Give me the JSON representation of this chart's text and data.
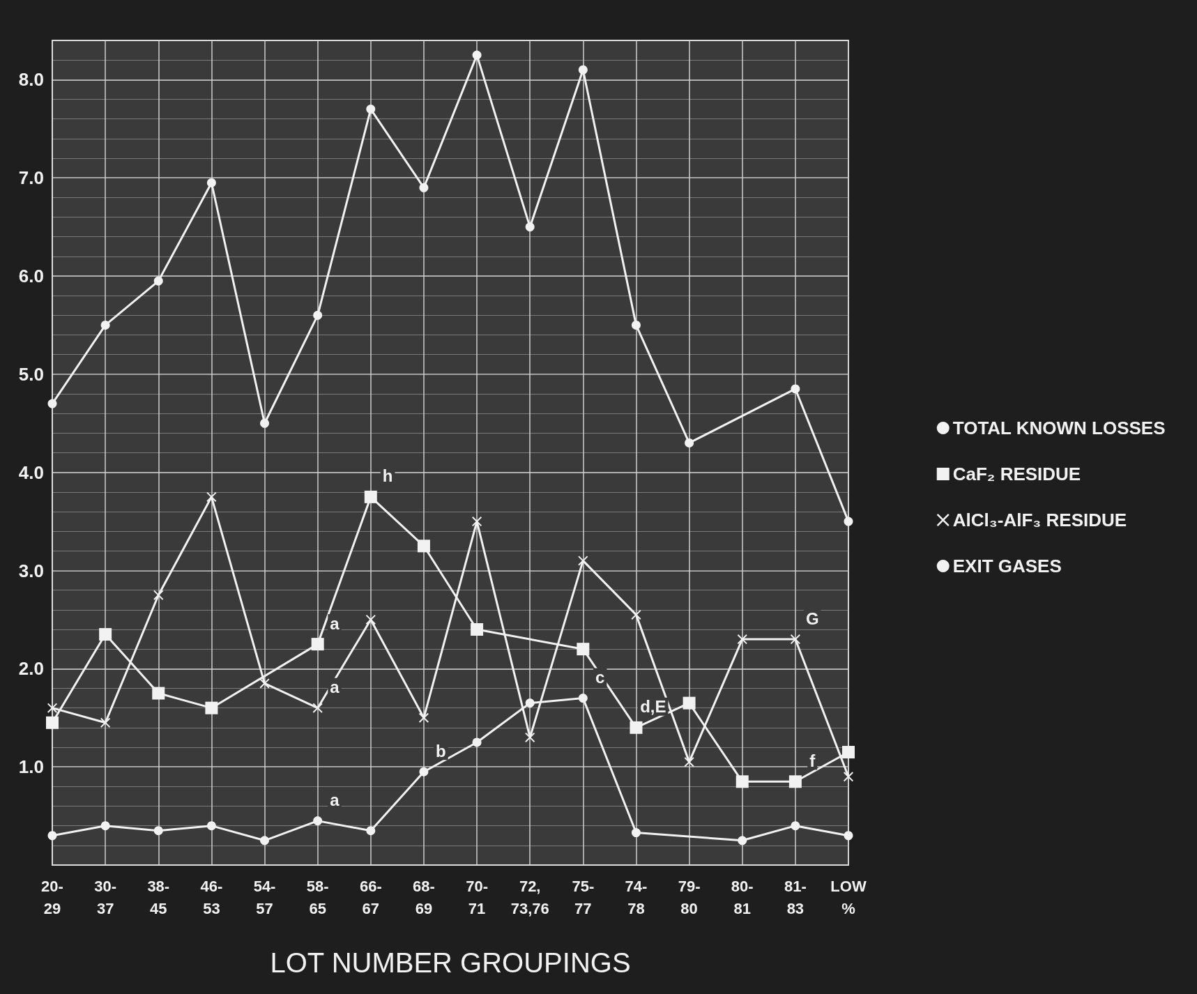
{
  "chart_data": {
    "type": "line",
    "xlabel": "LOT NUMBER GROUPINGS",
    "categories": [
      "20-\n29",
      "30-\n37",
      "38-\n45",
      "46-\n53",
      "54-\n57",
      "58-\n65",
      "66-\n67",
      "68-\n69",
      "70-\n71",
      "72,\n73,76",
      "75-\n77",
      "74-\n78",
      "79-\n80",
      "80-\n81",
      "81-\n83",
      "LOW\n%"
    ],
    "series": [
      {
        "name": "TOTAL KNOWN LOSSES",
        "color": "#f2f2f2",
        "marker": "circle",
        "values": [
          4.7,
          5.5,
          5.95,
          6.95,
          4.5,
          5.6,
          7.7,
          6.9,
          8.25,
          6.5,
          8.1,
          5.5,
          4.3,
          null,
          4.85,
          3.5
        ]
      },
      {
        "name": "CaF₂ RESIDUE",
        "color": "#f2f2f2",
        "marker": "square",
        "values": [
          1.45,
          2.35,
          1.75,
          1.6,
          null,
          2.25,
          3.75,
          3.25,
          2.4,
          null,
          2.2,
          1.4,
          1.65,
          0.85,
          0.85,
          1.15
        ]
      },
      {
        "name": "AlCl₃-AlF₃ RESIDUE",
        "color": "#f2f2f2",
        "marker": "cross",
        "values": [
          1.6,
          1.45,
          2.75,
          3.75,
          1.85,
          1.6,
          2.5,
          1.5,
          3.5,
          1.3,
          3.1,
          2.55,
          1.05,
          2.3,
          2.3,
          0.9
        ]
      },
      {
        "name": "EXIT GASES",
        "color": "#f2f2f2",
        "marker": "circle",
        "values": [
          0.3,
          0.4,
          0.35,
          0.4,
          0.25,
          0.45,
          0.35,
          0.95,
          1.25,
          1.65,
          1.7,
          0.33,
          null,
          0.25,
          0.4,
          0.3
        ]
      }
    ],
    "ylim": [
      0,
      8.4
    ],
    "yticks": [
      {
        "value": 1,
        "label": "1.0"
      },
      {
        "value": 2,
        "label": "2.0"
      },
      {
        "value": 3,
        "label": "3.0"
      },
      {
        "value": 4,
        "label": "4.0"
      },
      {
        "value": 5,
        "label": "5.0"
      },
      {
        "value": 6,
        "label": "6.0"
      },
      {
        "value": 7,
        "label": "7.0"
      },
      {
        "value": 8,
        "label": "8.0"
      }
    ],
    "annotations": [
      {
        "text": "h",
        "x": "66-\n67",
        "y": 3.75
      },
      {
        "text": "a",
        "x": "58-\n65",
        "y": 2.25
      },
      {
        "text": "a",
        "x": "58-\n65",
        "y": 1.6
      },
      {
        "text": "a",
        "x": "58-\n65",
        "y": 0.45
      },
      {
        "text": "b",
        "x": "68-\n69",
        "y": 0.95
      },
      {
        "text": "c",
        "x": "75-\n77",
        "y": 1.7
      },
      {
        "text": "d,E",
        "x": "74-\n78",
        "y": 1.4
      },
      {
        "text": "f",
        "x": "81-\n83",
        "y": 0.85
      },
      {
        "text": "G",
        "x": "81-\n83",
        "y": 2.3
      }
    ],
    "grid": true,
    "legend": "right",
    "line_style": "solid"
  }
}
